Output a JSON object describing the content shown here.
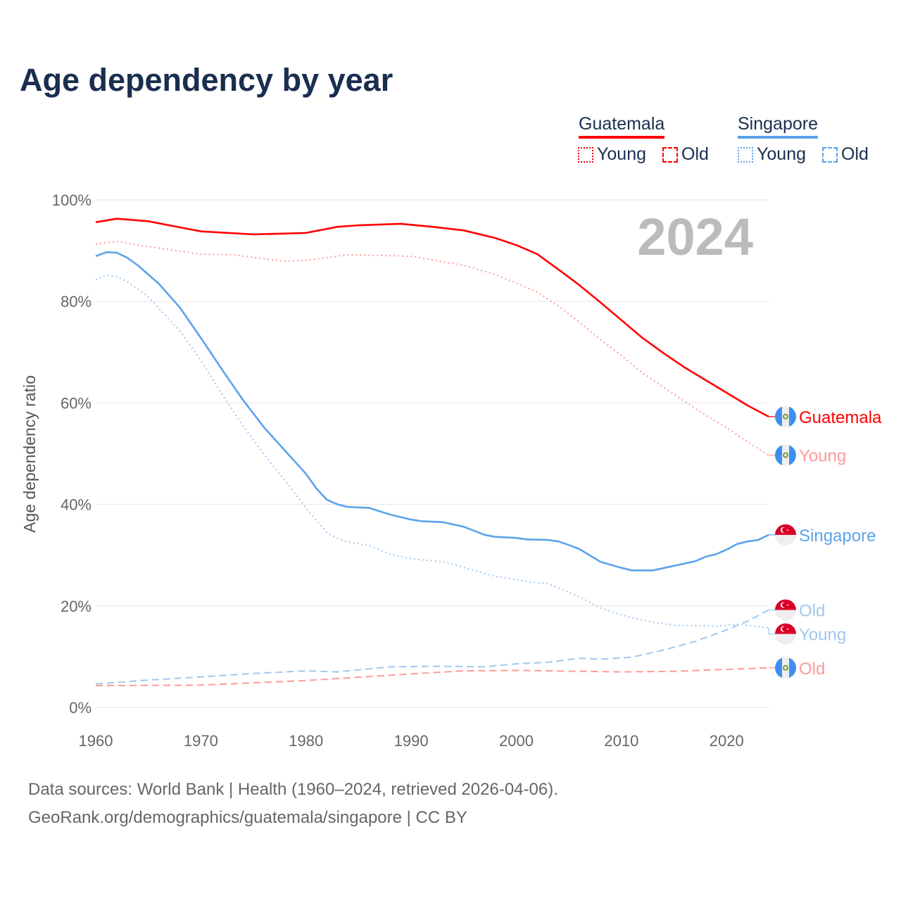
{
  "title": "Age dependency by year",
  "year_badge": "2024",
  "legend": {
    "groups": [
      {
        "name": "Guatemala",
        "color": "#ff0000",
        "light": "#ff9999",
        "young": "Young",
        "old": "Old"
      },
      {
        "name": "Singapore",
        "color": "#5ba3ea",
        "light": "#a0c8f0",
        "young": "Young",
        "old": "Old"
      }
    ]
  },
  "footer": {
    "line1": "Data sources: World Bank | Health (1960–2024, retrieved 2026-04-06).",
    "line2": "GeoRank.org/demographics/guatemala/singapore | CC BY"
  },
  "chart_data": {
    "type": "line",
    "title": "Age dependency by year",
    "xlabel": "",
    "ylabel": "Age dependency ratio",
    "xlim": [
      1960,
      2024
    ],
    "ylim": [
      0,
      100
    ],
    "x_ticks": [
      "1960",
      "1970",
      "1980",
      "1990",
      "2000",
      "2010",
      "2020"
    ],
    "y_ticks": [
      "0%",
      "20%",
      "40%",
      "60%",
      "80%",
      "100%"
    ],
    "grid": true,
    "series": [
      {
        "name": "Guatemala",
        "end_label": "Guatemala",
        "country": "gt",
        "color": "#ff0000",
        "style": "solid",
        "points": [
          [
            1960,
            95.6
          ],
          [
            1962,
            96.3
          ],
          [
            1965,
            95.8
          ],
          [
            1967,
            95
          ],
          [
            1970,
            93.8
          ],
          [
            1975,
            93.2
          ],
          [
            1980,
            93.5
          ],
          [
            1983,
            94.7
          ],
          [
            1985,
            95
          ],
          [
            1989,
            95.3
          ],
          [
            1992,
            94.7
          ],
          [
            1995,
            94
          ],
          [
            1998,
            92.5
          ],
          [
            2000,
            91.1
          ],
          [
            2002,
            89.3
          ],
          [
            2004,
            86.3
          ],
          [
            2006,
            83.2
          ],
          [
            2008,
            79.8
          ],
          [
            2010,
            76.3
          ],
          [
            2012,
            72.8
          ],
          [
            2014,
            69.8
          ],
          [
            2016,
            67
          ],
          [
            2018,
            64.5
          ],
          [
            2020,
            62
          ],
          [
            2022,
            59.5
          ],
          [
            2024,
            57.3
          ]
        ]
      },
      {
        "name": "Guatemala Young",
        "end_label": "Young",
        "country": "gt",
        "color": "#ff9999",
        "style": "dotted",
        "points": [
          [
            1960,
            91.3
          ],
          [
            1962,
            91.8
          ],
          [
            1965,
            90.8
          ],
          [
            1970,
            89.3
          ],
          [
            1973,
            89.2
          ],
          [
            1978,
            87.9
          ],
          [
            1980,
            88.1
          ],
          [
            1984,
            89.2
          ],
          [
            1990,
            88.9
          ],
          [
            1995,
            87.1
          ],
          [
            1998,
            85.3
          ],
          [
            2000,
            83.6
          ],
          [
            2002,
            81.8
          ],
          [
            2004,
            79.1
          ],
          [
            2006,
            75.9
          ],
          [
            2008,
            72.5
          ],
          [
            2010,
            69.3
          ],
          [
            2012,
            65.9
          ],
          [
            2014,
            63.1
          ],
          [
            2016,
            60.3
          ],
          [
            2018,
            57.6
          ],
          [
            2020,
            55.1
          ],
          [
            2022,
            52.3
          ],
          [
            2024,
            49.7
          ]
        ]
      },
      {
        "name": "Singapore",
        "end_label": "Singapore",
        "country": "sg",
        "color": "#5ba3ea",
        "style": "solid",
        "points": [
          [
            1960,
            88.9
          ],
          [
            1961,
            89.7
          ],
          [
            1962,
            89.6
          ],
          [
            1963,
            88.6
          ],
          [
            1964,
            87.1
          ],
          [
            1966,
            83.5
          ],
          [
            1968,
            78.8
          ],
          [
            1970,
            72.8
          ],
          [
            1972,
            66.6
          ],
          [
            1974,
            60.6
          ],
          [
            1976,
            55.2
          ],
          [
            1978,
            50.6
          ],
          [
            1980,
            46
          ],
          [
            1981,
            43.1
          ],
          [
            1982,
            40.9
          ],
          [
            1983,
            40
          ],
          [
            1984,
            39.5
          ],
          [
            1986,
            39.3
          ],
          [
            1988,
            38
          ],
          [
            1990,
            37
          ],
          [
            1991,
            36.7
          ],
          [
            1993,
            36.5
          ],
          [
            1995,
            35.6
          ],
          [
            1997,
            34
          ],
          [
            1998,
            33.6
          ],
          [
            2000,
            33.4
          ],
          [
            2001,
            33.1
          ],
          [
            2003,
            33
          ],
          [
            2004,
            32.7
          ],
          [
            2005,
            32
          ],
          [
            2006,
            31.2
          ],
          [
            2008,
            28.7
          ],
          [
            2010,
            27.5
          ],
          [
            2011,
            27
          ],
          [
            2013,
            27
          ],
          [
            2015,
            27.9
          ],
          [
            2017,
            28.8
          ],
          [
            2018,
            29.7
          ],
          [
            2019,
            30.2
          ],
          [
            2020,
            31.1
          ],
          [
            2021,
            32.2
          ],
          [
            2022,
            32.7
          ],
          [
            2023,
            33
          ],
          [
            2024,
            34
          ]
        ]
      },
      {
        "name": "Singapore Old",
        "end_label": "Old",
        "country": "sg",
        "color": "#a0c8f0",
        "style": "dashed",
        "points": [
          [
            1960,
            4.6
          ],
          [
            1965,
            5.4
          ],
          [
            1970,
            6
          ],
          [
            1975,
            6.7
          ],
          [
            1980,
            7.2
          ],
          [
            1983,
            7
          ],
          [
            1988,
            8
          ],
          [
            1993,
            8.1
          ],
          [
            1997,
            8
          ],
          [
            2000,
            8.6
          ],
          [
            2003,
            8.9
          ],
          [
            2006,
            9.7
          ],
          [
            2008,
            9.5
          ],
          [
            2011,
            9.9
          ],
          [
            2014,
            11.3
          ],
          [
            2017,
            13
          ],
          [
            2020,
            15.3
          ],
          [
            2022,
            17
          ],
          [
            2024,
            19.2
          ]
        ]
      },
      {
        "name": "Singapore Young",
        "end_label": "Young",
        "country": "sg",
        "color": "#a0c8f0",
        "style": "dotted",
        "points": [
          [
            1960,
            84.3
          ],
          [
            1961,
            85.2
          ],
          [
            1962,
            84.9
          ],
          [
            1963,
            83.9
          ],
          [
            1965,
            80.9
          ],
          [
            1968,
            74.2
          ],
          [
            1970,
            68.4
          ],
          [
            1972,
            61.7
          ],
          [
            1974,
            55.5
          ],
          [
            1976,
            49.9
          ],
          [
            1978,
            44.7
          ],
          [
            1980,
            39.3
          ],
          [
            1982,
            34.4
          ],
          [
            1983,
            33.3
          ],
          [
            1984,
            32.6
          ],
          [
            1986,
            31.9
          ],
          [
            1988,
            30.2
          ],
          [
            1990,
            29.3
          ],
          [
            1993,
            28.7
          ],
          [
            1995,
            27.6
          ],
          [
            1997,
            26.4
          ],
          [
            1998,
            25.8
          ],
          [
            2000,
            25.2
          ],
          [
            2001,
            24.8
          ],
          [
            2003,
            24.4
          ],
          [
            2005,
            22.7
          ],
          [
            2006,
            21.8
          ],
          [
            2008,
            19.6
          ],
          [
            2010,
            18.2
          ],
          [
            2012,
            17.2
          ],
          [
            2013,
            16.8
          ],
          [
            2015,
            16.2
          ],
          [
            2017,
            16.1
          ],
          [
            2019,
            16
          ],
          [
            2021,
            16.4
          ],
          [
            2022,
            16.2
          ],
          [
            2024,
            15.7
          ]
        ]
      },
      {
        "name": "Guatemala Old",
        "end_label": "Old",
        "country": "gt",
        "color": "#ff9999",
        "style": "dashed",
        "points": [
          [
            1960,
            4.3
          ],
          [
            1970,
            4.4
          ],
          [
            1980,
            5.3
          ],
          [
            1990,
            6.6
          ],
          [
            1995,
            7.2
          ],
          [
            2000,
            7.3
          ],
          [
            2010,
            7
          ],
          [
            2015,
            7.1
          ],
          [
            2020,
            7.5
          ],
          [
            2024,
            7.8
          ]
        ]
      }
    ]
  }
}
